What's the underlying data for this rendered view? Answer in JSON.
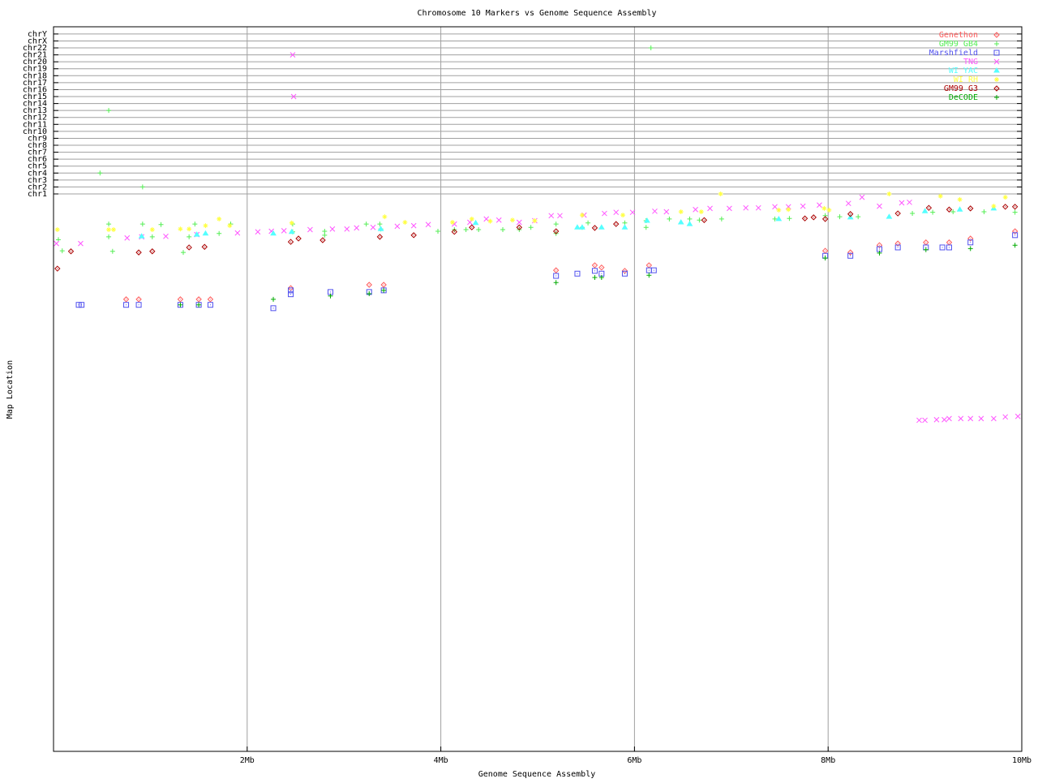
{
  "chart_data": {
    "type": "scatter",
    "title": "Chromosome 10 Markers vs Genome Sequence Assembly",
    "xlabel": "Genome Sequence Assembly",
    "ylabel": "Map Location",
    "xlim": [
      0,
      10
    ],
    "x_unit": "Mb",
    "x_ticks": [
      "2Mb",
      "4Mb",
      "6Mb",
      "8Mb",
      "10Mb"
    ],
    "x_tick_values": [
      2,
      4,
      6,
      8,
      10
    ],
    "y_categories": [
      "chr1",
      "chr2",
      "chr3",
      "chr4",
      "chr5",
      "chr6",
      "chr7",
      "chr8",
      "chr9",
      "chr10",
      "chr11",
      "chr12",
      "chr13",
      "chr14",
      "chr15",
      "chr16",
      "chr17",
      "chr18",
      "chr19",
      "chr20",
      "chr21",
      "chr22",
      "chrX",
      "chrY"
    ],
    "chr10_map_scale": [
      0,
      100
    ],
    "grid": true,
    "legend_position": "top-right",
    "series": [
      {
        "name": "Genethon",
        "color": "#ff5a5a",
        "marker": "diamond",
        "points": [
          [
            0.75,
            18.9
          ],
          [
            0.88,
            18.9
          ],
          [
            1.31,
            18.9
          ],
          [
            1.5,
            18.9
          ],
          [
            1.62,
            18.9
          ],
          [
            2.45,
            16.9
          ],
          [
            3.26,
            16.3
          ],
          [
            3.41,
            16.3
          ],
          [
            5.19,
            13.7
          ],
          [
            5.59,
            12.8
          ],
          [
            5.66,
            13.2
          ],
          [
            5.9,
            13.8
          ],
          [
            6.15,
            12.8
          ],
          [
            7.97,
            10.2
          ],
          [
            8.23,
            10.5
          ],
          [
            8.53,
            9.2
          ],
          [
            8.72,
            8.9
          ],
          [
            9.01,
            8.7
          ],
          [
            9.25,
            8.7
          ],
          [
            9.47,
            8.0
          ],
          [
            9.93,
            6.7
          ]
        ]
      },
      {
        "name": "GM99 GB4",
        "color": "#55ee55",
        "marker": "plus",
        "points": [
          [
            0.57,
            "chr13"
          ],
          [
            0.48,
            "chr4"
          ],
          [
            0.92,
            "chr2"
          ],
          [
            6.17,
            "chr22"
          ],
          [
            0.05,
            8.2
          ],
          [
            0.09,
            10.2
          ],
          [
            0.57,
            5.4
          ],
          [
            0.57,
            7.7
          ],
          [
            0.61,
            10.3
          ],
          [
            0.92,
            5.4
          ],
          [
            1.02,
            7.7
          ],
          [
            1.11,
            5.5
          ],
          [
            1.34,
            10.5
          ],
          [
            1.4,
            7.7
          ],
          [
            1.46,
            5.4
          ],
          [
            1.71,
            7.1
          ],
          [
            1.83,
            5.4
          ],
          [
            2.47,
            5.4
          ],
          [
            2.47,
            6.8
          ],
          [
            2.8,
            6.7
          ],
          [
            2.8,
            7.4
          ],
          [
            3.23,
            5.4
          ],
          [
            3.38,
            6.3
          ],
          [
            3.37,
            5.4
          ],
          [
            3.97,
            6.7
          ],
          [
            4.14,
            6.4
          ],
          [
            4.26,
            6.4
          ],
          [
            4.39,
            6.4
          ],
          [
            4.64,
            6.4
          ],
          [
            4.81,
            6.4
          ],
          [
            4.93,
            6.0
          ],
          [
            5.19,
            5.4
          ],
          [
            5.19,
            7.1
          ],
          [
            5.46,
            6.0
          ],
          [
            5.52,
            5.2
          ],
          [
            5.9,
            5.2
          ],
          [
            6.12,
            4.8
          ],
          [
            6.12,
            6.0
          ],
          [
            6.36,
            4.5
          ],
          [
            6.57,
            4.5
          ],
          [
            6.67,
            4.7
          ],
          [
            6.9,
            4.5
          ],
          [
            7.45,
            4.5
          ],
          [
            7.6,
            4.4
          ],
          [
            7.97,
            3.9
          ],
          [
            8.12,
            4.1
          ],
          [
            8.31,
            4.1
          ],
          [
            8.87,
            3.5
          ],
          [
            9.08,
            3.3
          ],
          [
            9.29,
            3.2
          ],
          [
            9.61,
            3.2
          ],
          [
            9.93,
            3.3
          ]
        ]
      },
      {
        "name": "Marshfield",
        "color": "#5050ee",
        "marker": "square",
        "points": [
          [
            0.26,
            19.9
          ],
          [
            0.29,
            19.9
          ],
          [
            0.75,
            19.9
          ],
          [
            0.88,
            19.9
          ],
          [
            1.31,
            19.9
          ],
          [
            1.5,
            19.9
          ],
          [
            1.62,
            19.9
          ],
          [
            2.27,
            20.5
          ],
          [
            2.45,
            18.0
          ],
          [
            2.45,
            17.3
          ],
          [
            2.86,
            17.6
          ],
          [
            3.26,
            17.6
          ],
          [
            3.41,
            17.3
          ],
          [
            5.19,
            14.7
          ],
          [
            5.41,
            14.3
          ],
          [
            5.59,
            13.8
          ],
          [
            5.66,
            14.3
          ],
          [
            5.9,
            14.3
          ],
          [
            6.15,
            13.7
          ],
          [
            6.2,
            13.7
          ],
          [
            7.97,
            11.1
          ],
          [
            8.23,
            11.1
          ],
          [
            8.53,
            9.9
          ],
          [
            8.72,
            9.6
          ],
          [
            9.01,
            9.6
          ],
          [
            9.18,
            9.6
          ],
          [
            9.25,
            9.6
          ],
          [
            9.47,
            8.7
          ],
          [
            9.93,
            7.4
          ]
        ]
      },
      {
        "name": "TNG",
        "color": "#ff55ff",
        "marker": "cross",
        "points": [
          [
            2.47,
            "chr21"
          ],
          [
            2.48,
            "chr15"
          ],
          [
            0.03,
            8.9
          ],
          [
            0.28,
            8.9
          ],
          [
            0.76,
            7.9
          ],
          [
            0.91,
            7.7
          ],
          [
            1.16,
            7.6
          ],
          [
            1.48,
            7.3
          ],
          [
            1.9,
            7.0
          ],
          [
            2.11,
            6.8
          ],
          [
            2.25,
            6.7
          ],
          [
            2.38,
            6.6
          ],
          [
            2.65,
            6.4
          ],
          [
            2.88,
            6.3
          ],
          [
            3.03,
            6.3
          ],
          [
            3.13,
            6.1
          ],
          [
            3.3,
            6.0
          ],
          [
            3.55,
            5.8
          ],
          [
            3.72,
            5.7
          ],
          [
            3.87,
            5.5
          ],
          [
            4.14,
            5.4
          ],
          [
            4.3,
            5.1
          ],
          [
            4.47,
            4.5
          ],
          [
            4.6,
            4.7
          ],
          [
            4.81,
            5.1
          ],
          [
            4.97,
            4.8
          ],
          [
            5.14,
            3.9
          ],
          [
            5.23,
            3.9
          ],
          [
            5.48,
            3.8
          ],
          [
            5.69,
            3.5
          ],
          [
            5.81,
            3.3
          ],
          [
            5.98,
            3.3
          ],
          [
            6.21,
            3.1
          ],
          [
            6.33,
            3.2
          ],
          [
            6.63,
            2.8
          ],
          [
            6.78,
            2.6
          ],
          [
            6.98,
            2.6
          ],
          [
            7.15,
            2.5
          ],
          [
            7.28,
            2.5
          ],
          [
            7.45,
            2.3
          ],
          [
            7.59,
            2.3
          ],
          [
            7.74,
            2.2
          ],
          [
            7.91,
            2.0
          ],
          [
            8.21,
            1.7
          ],
          [
            8.35,
            0.6
          ],
          [
            8.53,
            2.2
          ],
          [
            8.76,
            1.6
          ],
          [
            8.84,
            1.5
          ],
          [
            8.94,
            40.6
          ],
          [
            9.0,
            40.6
          ],
          [
            9.12,
            40.5
          ],
          [
            9.2,
            40.5
          ],
          [
            9.25,
            40.3
          ],
          [
            9.37,
            40.3
          ],
          [
            9.47,
            40.3
          ],
          [
            9.58,
            40.3
          ],
          [
            9.71,
            40.3
          ],
          [
            9.83,
            40.0
          ],
          [
            9.96,
            39.9
          ]
        ]
      },
      {
        "name": "WI YAC",
        "color": "#55ffff",
        "marker": "triangle",
        "points": [
          [
            0.91,
            7.6
          ],
          [
            1.48,
            7.3
          ],
          [
            1.57,
            7.1
          ],
          [
            2.27,
            7.1
          ],
          [
            2.46,
            6.8
          ],
          [
            3.38,
            6.3
          ],
          [
            4.36,
            5.2
          ],
          [
            5.41,
            6.0
          ],
          [
            5.46,
            6.0
          ],
          [
            5.66,
            6.0
          ],
          [
            5.9,
            6.0
          ],
          [
            6.13,
            4.8
          ],
          [
            6.48,
            5.1
          ],
          [
            6.57,
            5.4
          ],
          [
            7.49,
            4.5
          ],
          [
            8.23,
            4.2
          ],
          [
            8.63,
            4.1
          ],
          [
            9.0,
            3.1
          ],
          [
            9.36,
            2.8
          ],
          [
            9.71,
            2.6
          ]
        ]
      },
      {
        "name": "WI RH",
        "color": "#ffff44",
        "marker": "star",
        "points": [
          [
            0.04,
            6.4
          ],
          [
            0.57,
            6.4
          ],
          [
            0.62,
            6.4
          ],
          [
            1.02,
            6.4
          ],
          [
            1.31,
            6.3
          ],
          [
            1.4,
            6.3
          ],
          [
            1.57,
            5.7
          ],
          [
            1.71,
            4.5
          ],
          [
            1.82,
            5.7
          ],
          [
            2.46,
            5.2
          ],
          [
            3.42,
            4.1
          ],
          [
            3.63,
            5.1
          ],
          [
            4.12,
            5.1
          ],
          [
            4.32,
            4.5
          ],
          [
            4.51,
            4.9
          ],
          [
            4.74,
            4.7
          ],
          [
            4.97,
            4.8
          ],
          [
            5.46,
            3.8
          ],
          [
            5.88,
            3.8
          ],
          [
            6.48,
            3.2
          ],
          [
            6.69,
            3.2
          ],
          [
            6.89,
            "chr1"
          ],
          [
            7.49,
            2.9
          ],
          [
            7.59,
            2.8
          ],
          [
            7.96,
            2.6
          ],
          [
            8.01,
            2.9
          ],
          [
            8.63,
            "chr1"
          ],
          [
            9.16,
            0.4
          ],
          [
            9.36,
            1.0
          ],
          [
            9.71,
            2.2
          ],
          [
            9.83,
            0.6
          ]
        ]
      },
      {
        "name": "GM99 G3",
        "color": "#aa0000",
        "marker": "diamond",
        "points": [
          [
            0.04,
            13.4
          ],
          [
            0.18,
            10.3
          ],
          [
            0.88,
            10.5
          ],
          [
            1.02,
            10.3
          ],
          [
            1.4,
            9.6
          ],
          [
            1.56,
            9.5
          ],
          [
            2.45,
            8.6
          ],
          [
            2.53,
            8.0
          ],
          [
            2.78,
            8.3
          ],
          [
            3.37,
            7.7
          ],
          [
            3.72,
            7.4
          ],
          [
            4.14,
            6.8
          ],
          [
            4.32,
            6.0
          ],
          [
            4.81,
            6.0
          ],
          [
            5.19,
            6.7
          ],
          [
            5.59,
            6.1
          ],
          [
            5.81,
            5.4
          ],
          [
            6.72,
            4.7
          ],
          [
            7.76,
            4.4
          ],
          [
            7.85,
            4.2
          ],
          [
            7.97,
            4.5
          ],
          [
            8.23,
            3.6
          ],
          [
            8.72,
            3.5
          ],
          [
            9.04,
            2.5
          ],
          [
            9.25,
            2.8
          ],
          [
            9.47,
            2.6
          ],
          [
            9.83,
            2.3
          ],
          [
            9.93,
            2.3
          ]
        ]
      },
      {
        "name": "DeCODE",
        "color": "#00aa00",
        "marker": "plus",
        "points": [
          [
            1.31,
            19.9
          ],
          [
            1.5,
            19.9
          ],
          [
            2.27,
            18.9
          ],
          [
            2.86,
            18.3
          ],
          [
            3.26,
            17.9
          ],
          [
            3.41,
            17.3
          ],
          [
            5.19,
            15.9
          ],
          [
            5.59,
            15.0
          ],
          [
            5.66,
            15.0
          ],
          [
            6.15,
            14.6
          ],
          [
            7.97,
            11.5
          ],
          [
            8.53,
            10.6
          ],
          [
            9.01,
            10.0
          ],
          [
            9.47,
            9.8
          ],
          [
            9.93,
            9.2
          ]
        ]
      }
    ]
  }
}
